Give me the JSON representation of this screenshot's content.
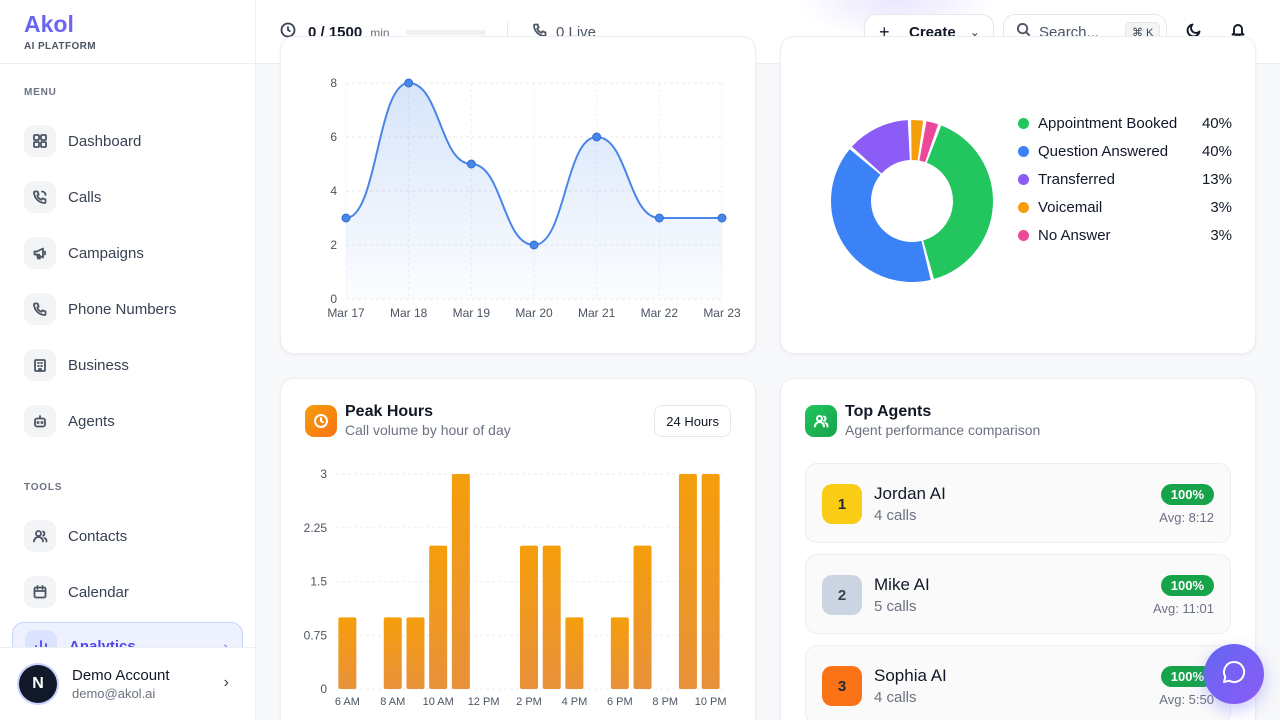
{
  "brand": {
    "name": "Akol",
    "subtitle": "AI PLATFORM"
  },
  "sidebar": {
    "menu_label": "MENU",
    "menu_items": [
      {
        "label": "Dashboard",
        "icon": "grid-icon"
      },
      {
        "label": "Calls",
        "icon": "phone-call-icon"
      },
      {
        "label": "Campaigns",
        "icon": "megaphone-icon"
      },
      {
        "label": "Phone Numbers",
        "icon": "phone-icon"
      },
      {
        "label": "Business",
        "icon": "building-icon"
      },
      {
        "label": "Agents",
        "icon": "bot-icon"
      }
    ],
    "tools_label": "TOOLS",
    "tools_items": [
      {
        "label": "Contacts",
        "icon": "users-icon"
      },
      {
        "label": "Calendar",
        "icon": "calendar-icon"
      },
      {
        "label": "Analytics",
        "icon": "bar-chart-icon",
        "active": true
      }
    ]
  },
  "account": {
    "initial": "N",
    "name": "Demo Account",
    "email": "demo@akol.ai"
  },
  "topbar": {
    "minutes_value": "0 / 1500",
    "minutes_unit": "min",
    "minutes_used_fraction": 0,
    "live_text": "0 Live",
    "create_label": "Create",
    "search_placeholder": "Search...",
    "search_shortcut": "⌘ K"
  },
  "colors": {
    "accent": "#6366f1",
    "line": "#4a86e8",
    "bar": "#f59e0b",
    "success": "#16a34a"
  },
  "chart_data": [
    {
      "type": "line",
      "x": [
        "Mar 17",
        "Mar 18",
        "Mar 19",
        "Mar 20",
        "Mar 21",
        "Mar 22",
        "Mar 23"
      ],
      "values": [
        3,
        8,
        5,
        2,
        6,
        3,
        3
      ],
      "yticks": [
        "0",
        "2",
        "4",
        "6",
        "8"
      ],
      "ylim": [
        0,
        8
      ],
      "grid": true
    },
    {
      "type": "pie",
      "donut": true,
      "slices": [
        {
          "name": "Appointment Booked",
          "value": 40,
          "label": "40%",
          "color": "#22c55e"
        },
        {
          "name": "Question Answered",
          "value": 40,
          "label": "40%",
          "color": "#3b82f6"
        },
        {
          "name": "Transferred",
          "value": 13,
          "label": "13%",
          "color": "#8b5cf6"
        },
        {
          "name": "Voicemail",
          "value": 3,
          "label": "3%",
          "color": "#f59e0b"
        },
        {
          "name": "No Answer",
          "value": 3,
          "label": "3%",
          "color": "#ec4899"
        }
      ],
      "legend": "right"
    },
    {
      "type": "bar",
      "title": "Peak Hours",
      "subtitle": "Call volume by hour of day",
      "range_label": "24 Hours",
      "values": [
        1,
        0,
        1,
        1,
        2,
        3,
        0,
        0,
        2,
        2,
        1,
        0,
        1,
        2,
        0,
        3,
        3
      ],
      "xticks": [
        "6 AM",
        "8 AM",
        "10 AM",
        "12 PM",
        "2 PM",
        "4 PM",
        "6 PM",
        "8 PM",
        "10 PM"
      ],
      "yticks": [
        "0",
        "0.75",
        "1.5",
        "2.25",
        "3"
      ],
      "ylim": [
        0,
        3
      ],
      "grid": true
    }
  ],
  "top_agents": {
    "title": "Top Agents",
    "subtitle": "Agent performance comparison",
    "agents": [
      {
        "rank": "1",
        "name": "Jordan AI",
        "calls": "4 calls",
        "rate": "100%",
        "avg": "Avg: 8:12",
        "color": "#facc15"
      },
      {
        "rank": "2",
        "name": "Mike AI",
        "calls": "5 calls",
        "rate": "100%",
        "avg": "Avg: 11:01",
        "color": "#cbd5e1"
      },
      {
        "rank": "3",
        "name": "Sophia AI",
        "calls": "4 calls",
        "rate": "100%",
        "avg": "Avg: 5:50",
        "color": "#f97316"
      }
    ]
  }
}
